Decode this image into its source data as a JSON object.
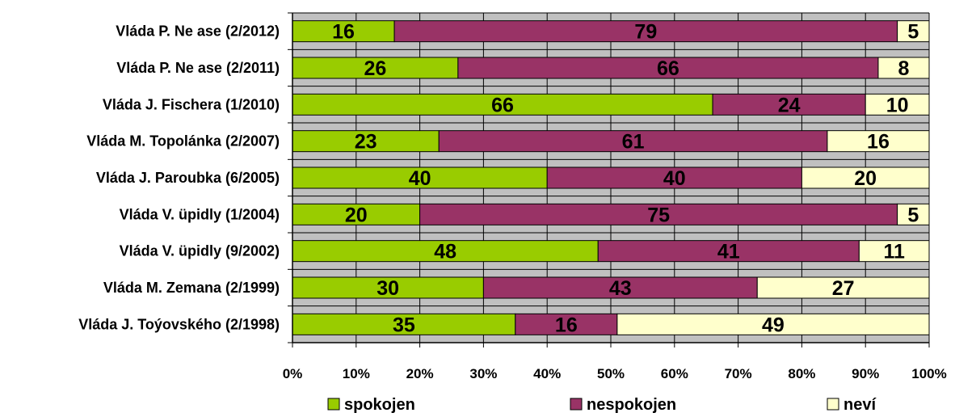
{
  "chart_data": {
    "type": "bar",
    "orientation": "horizontal",
    "stacked": true,
    "categories": [
      "Vláda P. Ne ase (2/2012)",
      "Vláda P. Ne ase (2/2011)",
      "Vláda J. Fischera (1/2010)",
      "Vláda M. Topolánka (2/2007)",
      "Vláda J. Paroubka (6/2005)",
      "Vláda V. üpidly (1/2004)",
      "Vláda V. üpidly (9/2002)",
      "Vláda M. Zemana (2/1999)",
      "Vláda J. Toýovského (2/1998)"
    ],
    "series": [
      {
        "name": "spokojen",
        "color": "#99cc00",
        "values": [
          16,
          26,
          66,
          23,
          40,
          20,
          48,
          30,
          35
        ]
      },
      {
        "name": "nespokojen",
        "color": "#993366",
        "values": [
          79,
          66,
          24,
          61,
          40,
          75,
          41,
          43,
          16
        ]
      },
      {
        "name": "neví",
        "color": "#ffffcc",
        "values": [
          5,
          8,
          10,
          16,
          20,
          5,
          11,
          27,
          49
        ]
      }
    ],
    "xlim": [
      0,
      100
    ],
    "x_ticks": [
      "0%",
      "10%",
      "20%",
      "30%",
      "40%",
      "50%",
      "60%",
      "70%",
      "80%",
      "90%",
      "100%"
    ],
    "plot_background": "#c0c0c0",
    "grid": true,
    "legend_position": "bottom",
    "title": "",
    "xlabel": "",
    "ylabel": ""
  }
}
